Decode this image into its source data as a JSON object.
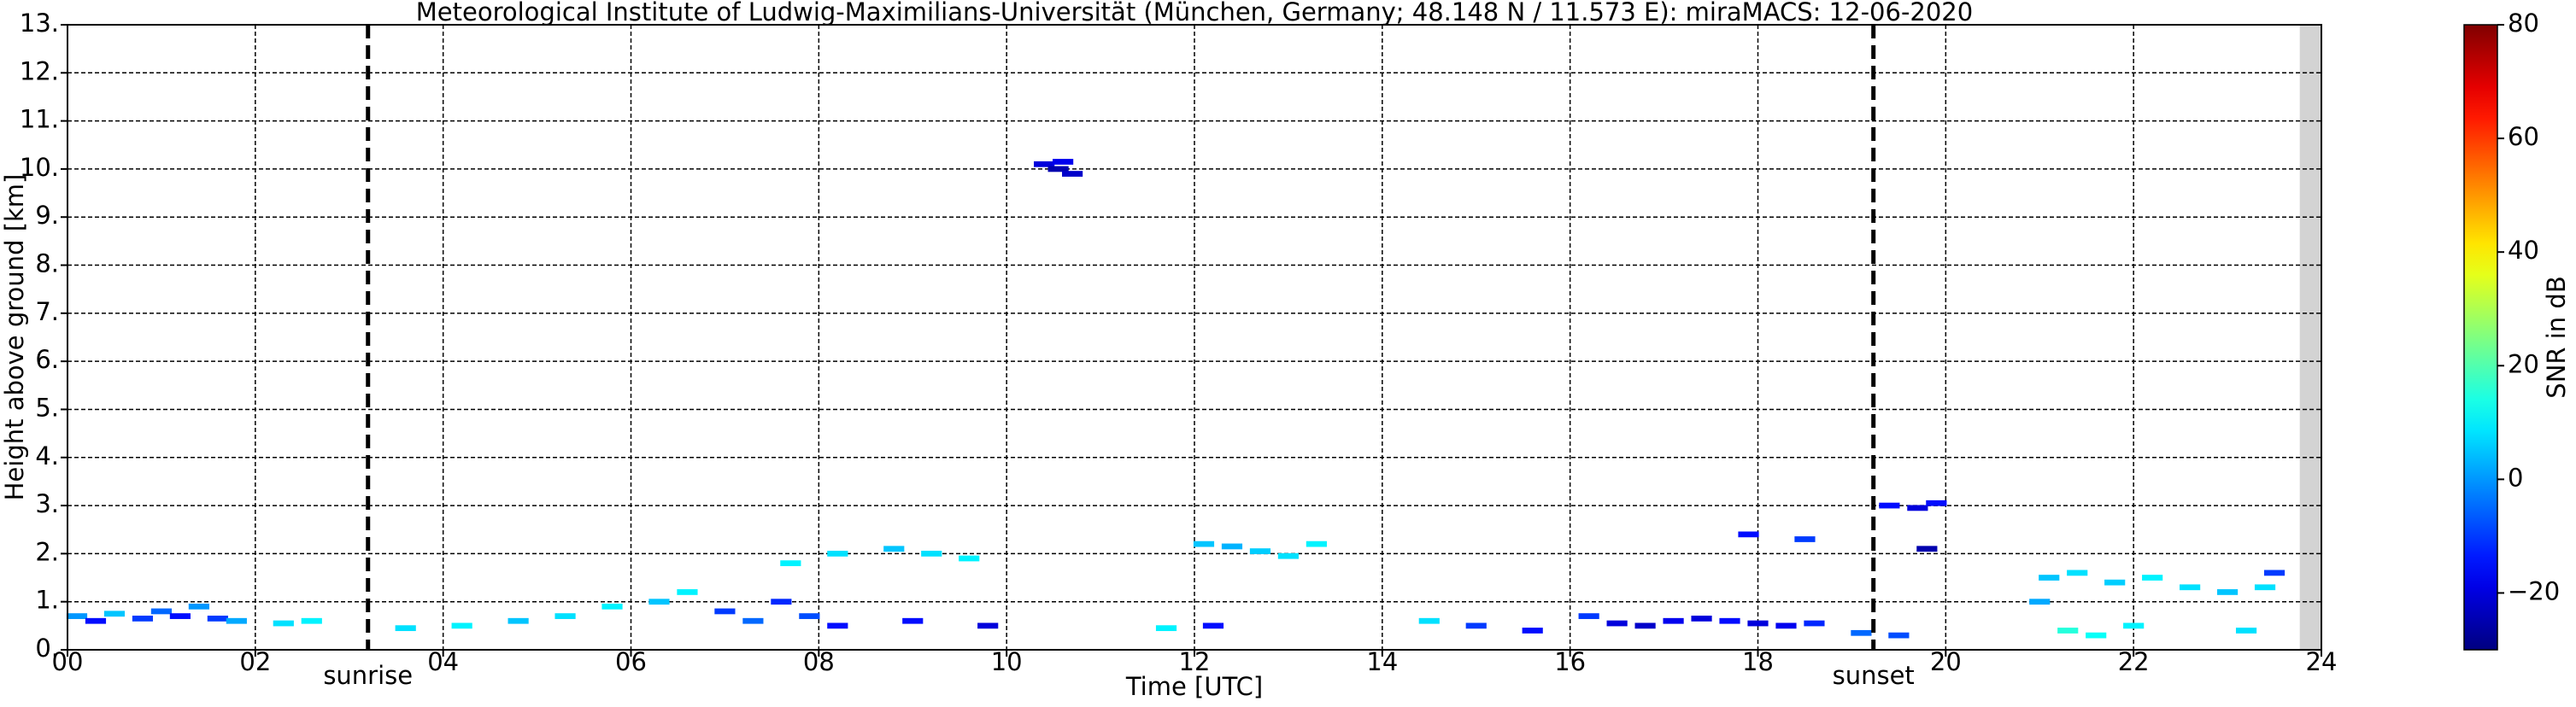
{
  "chart_data": {
    "type": "scatter",
    "title": "Meteorological Institute of Ludwig-Maximilians-Universität (München, Germany; 48.148 N / 11.573 E):    miraMACS: 12-06-2020",
    "xlabel": "Time [UTC]",
    "ylabel": "Height above ground [km]",
    "colorbar_label": "SNR in dB",
    "colormap": "jet",
    "grid": true,
    "xlim": [
      0,
      24
    ],
    "xticks": [
      {
        "value": 0,
        "label": "00"
      },
      {
        "value": 2,
        "label": "02"
      },
      {
        "value": 4,
        "label": "04"
      },
      {
        "value": 6,
        "label": "06"
      },
      {
        "value": 8,
        "label": "08"
      },
      10,
      12,
      14,
      16,
      18,
      20,
      22,
      24
    ],
    "ylim": [
      0,
      13
    ],
    "yticks": [
      {
        "value": 0,
        "label": "0."
      },
      {
        "value": 1,
        "label": "1."
      },
      {
        "value": 2,
        "label": "2."
      },
      {
        "value": 3,
        "label": "3."
      },
      {
        "value": 4,
        "label": "4."
      },
      {
        "value": 5,
        "label": "5."
      },
      {
        "value": 6,
        "label": "6."
      },
      {
        "value": 7,
        "label": "7."
      },
      {
        "value": 8,
        "label": "8."
      },
      {
        "value": 9,
        "label": "9."
      },
      {
        "value": 10,
        "label": "10."
      },
      {
        "value": 11,
        "label": "11."
      },
      {
        "value": 12,
        "label": "12."
      },
      {
        "value": 13,
        "label": "13."
      }
    ],
    "clim": [
      -30,
      80
    ],
    "cticks": [
      {
        "value": -20,
        "label": "−20"
      },
      0,
      20,
      40,
      60,
      80
    ],
    "no_data_xlim": [
      23.77,
      24
    ],
    "annotations": [
      {
        "x": 3.2,
        "label": "sunrise"
      },
      {
        "x": 19.23,
        "label": "sunset"
      }
    ],
    "x": [
      0.1,
      0.3,
      0.5,
      0.8,
      1.0,
      1.2,
      1.4,
      1.6,
      1.8,
      2.3,
      2.6,
      3.6,
      4.2,
      4.8,
      5.3,
      5.8,
      6.3,
      6.6,
      7.0,
      7.3,
      7.6,
      7.9,
      8.2,
      7.7,
      8.2,
      8.8,
      9.2,
      9.6,
      9.0,
      9.8,
      10.4,
      10.55,
      10.7,
      10.6,
      12.1,
      12.4,
      12.7,
      13.0,
      13.3,
      12.2,
      11.7,
      14.5,
      15.0,
      15.6,
      16.2,
      16.5,
      16.8,
      17.1,
      17.4,
      17.7,
      18.0,
      18.3,
      18.6,
      17.9,
      18.5,
      19.1,
      19.5,
      19.4,
      19.7,
      19.9,
      19.8,
      21.1,
      21.4,
      21.8,
      22.2,
      22.6,
      23.0,
      23.4,
      21.3,
      21.6,
      22.0,
      23.2,
      23.5,
      21.0
    ],
    "y": [
      0.7,
      0.6,
      0.75,
      0.65,
      0.8,
      0.7,
      0.9,
      0.65,
      0.6,
      0.55,
      0.6,
      0.45,
      0.5,
      0.6,
      0.7,
      0.9,
      1.0,
      1.2,
      0.8,
      0.6,
      1.0,
      0.7,
      0.5,
      1.8,
      2.0,
      2.1,
      2.0,
      1.9,
      0.6,
      0.5,
      10.1,
      10.0,
      9.9,
      10.15,
      2.2,
      2.15,
      2.05,
      1.95,
      2.2,
      0.5,
      0.45,
      0.6,
      0.5,
      0.4,
      0.7,
      0.55,
      0.5,
      0.6,
      0.65,
      0.6,
      0.55,
      0.5,
      0.55,
      2.4,
      2.3,
      0.35,
      0.3,
      3.0,
      2.95,
      3.05,
      2.1,
      1.5,
      1.6,
      1.4,
      1.5,
      1.3,
      1.2,
      1.3,
      0.4,
      0.3,
      0.5,
      0.4,
      1.6,
      1.0
    ],
    "snr": [
      0,
      -15,
      5,
      -10,
      -5,
      -15,
      0,
      -10,
      2,
      8,
      10,
      8,
      10,
      5,
      8,
      10,
      5,
      10,
      -10,
      -5,
      -12,
      -8,
      -15,
      10,
      8,
      5,
      8,
      10,
      -15,
      -20,
      -20,
      -25,
      -22,
      -18,
      5,
      3,
      6,
      8,
      10,
      -15,
      10,
      8,
      -10,
      -15,
      -10,
      -20,
      -22,
      -18,
      -20,
      -15,
      -20,
      -18,
      -12,
      -15,
      -10,
      -5,
      -8,
      -15,
      -20,
      -15,
      -25,
      5,
      8,
      6,
      10,
      8,
      5,
      8,
      15,
      12,
      10,
      8,
      -10,
      2
    ]
  }
}
